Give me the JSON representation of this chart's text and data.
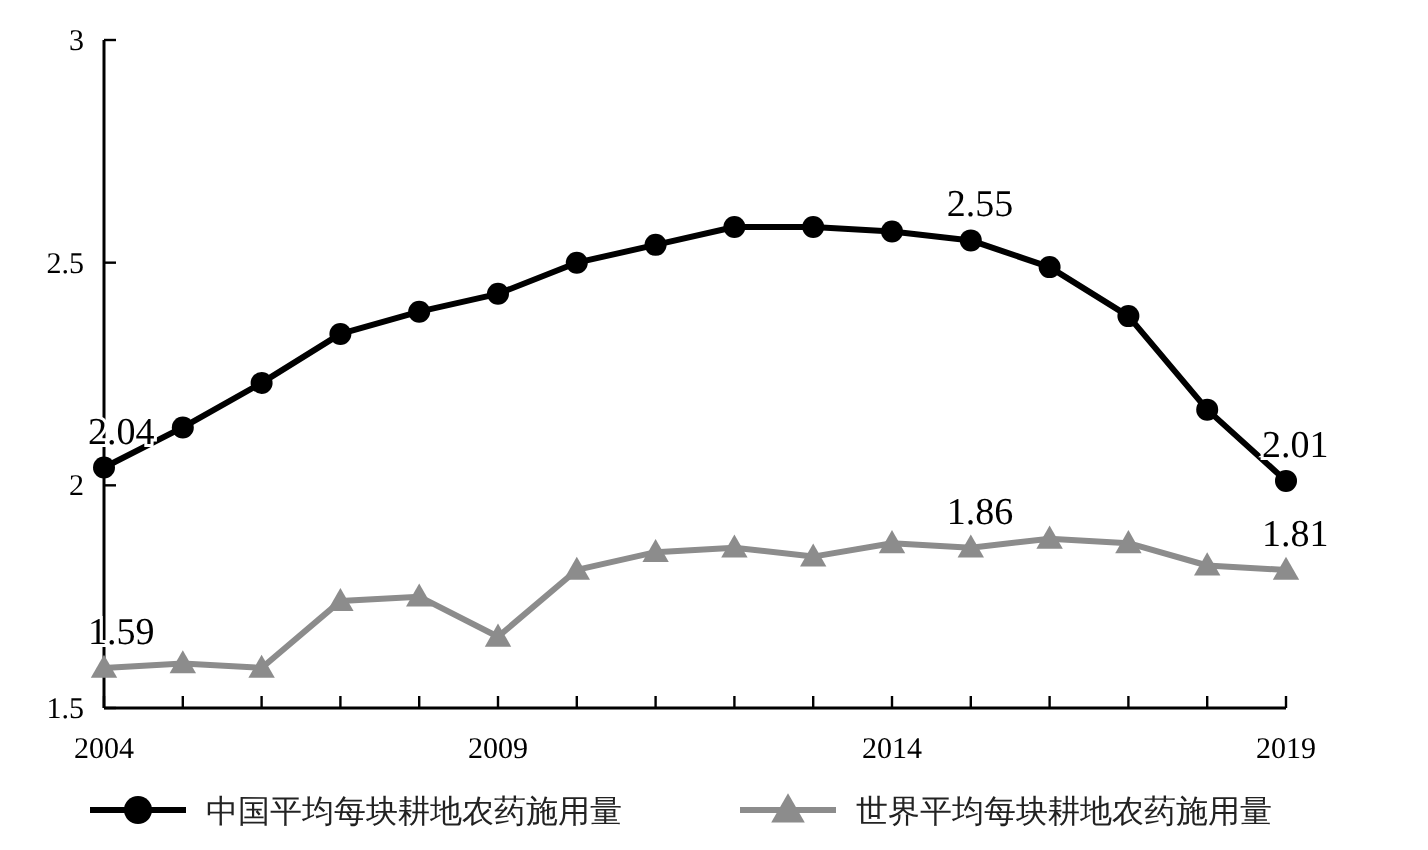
{
  "chart_data": {
    "type": "line",
    "x": [
      2004,
      2005,
      2006,
      2007,
      2008,
      2009,
      2010,
      2011,
      2012,
      2013,
      2014,
      2015,
      2016,
      2017,
      2018,
      2019
    ],
    "series": [
      {
        "name": "中国平均每块耕地农药施用量",
        "color": "#000000",
        "marker": "circle",
        "values": [
          2.04,
          2.13,
          2.23,
          2.34,
          2.39,
          2.43,
          2.5,
          2.54,
          2.58,
          2.58,
          2.57,
          2.55,
          2.49,
          2.38,
          2.17,
          2.01
        ],
        "value_labels": [
          "2.04",
          null,
          null,
          null,
          null,
          null,
          null,
          null,
          null,
          null,
          null,
          "2.55",
          null,
          null,
          null,
          "2.01"
        ]
      },
      {
        "name": "世界平均每块耕地农药施用量",
        "color": "#8c8c8c",
        "marker": "triangle",
        "values": [
          1.59,
          1.6,
          1.59,
          1.74,
          1.75,
          1.66,
          1.81,
          1.85,
          1.86,
          1.84,
          1.87,
          1.86,
          1.88,
          1.87,
          1.82,
          1.81
        ],
        "value_labels": [
          "1.59",
          null,
          null,
          null,
          null,
          null,
          null,
          null,
          null,
          null,
          null,
          "1.86",
          null,
          null,
          null,
          "1.81"
        ]
      }
    ],
    "xlim": [
      2004,
      2019
    ],
    "xticks": [
      2004,
      {
        "value": 2005,
        "label": null
      },
      {
        "value": 2006,
        "label": null
      },
      {
        "value": 2007,
        "label": null
      },
      {
        "value": 2008,
        "label": null
      },
      2009,
      {
        "value": 2010,
        "label": null
      },
      {
        "value": 2011,
        "label": null
      },
      {
        "value": 2012,
        "label": null
      },
      {
        "value": 2013,
        "label": null
      },
      2014,
      {
        "value": 2015,
        "label": null
      },
      {
        "value": 2016,
        "label": null
      },
      {
        "value": 2017,
        "label": null
      },
      {
        "value": 2018,
        "label": null
      },
      2019
    ],
    "ylim": [
      1.5,
      3
    ],
    "yticks": [
      1.5,
      2,
      2.5,
      3
    ],
    "grid": false,
    "legend": "bottom"
  }
}
